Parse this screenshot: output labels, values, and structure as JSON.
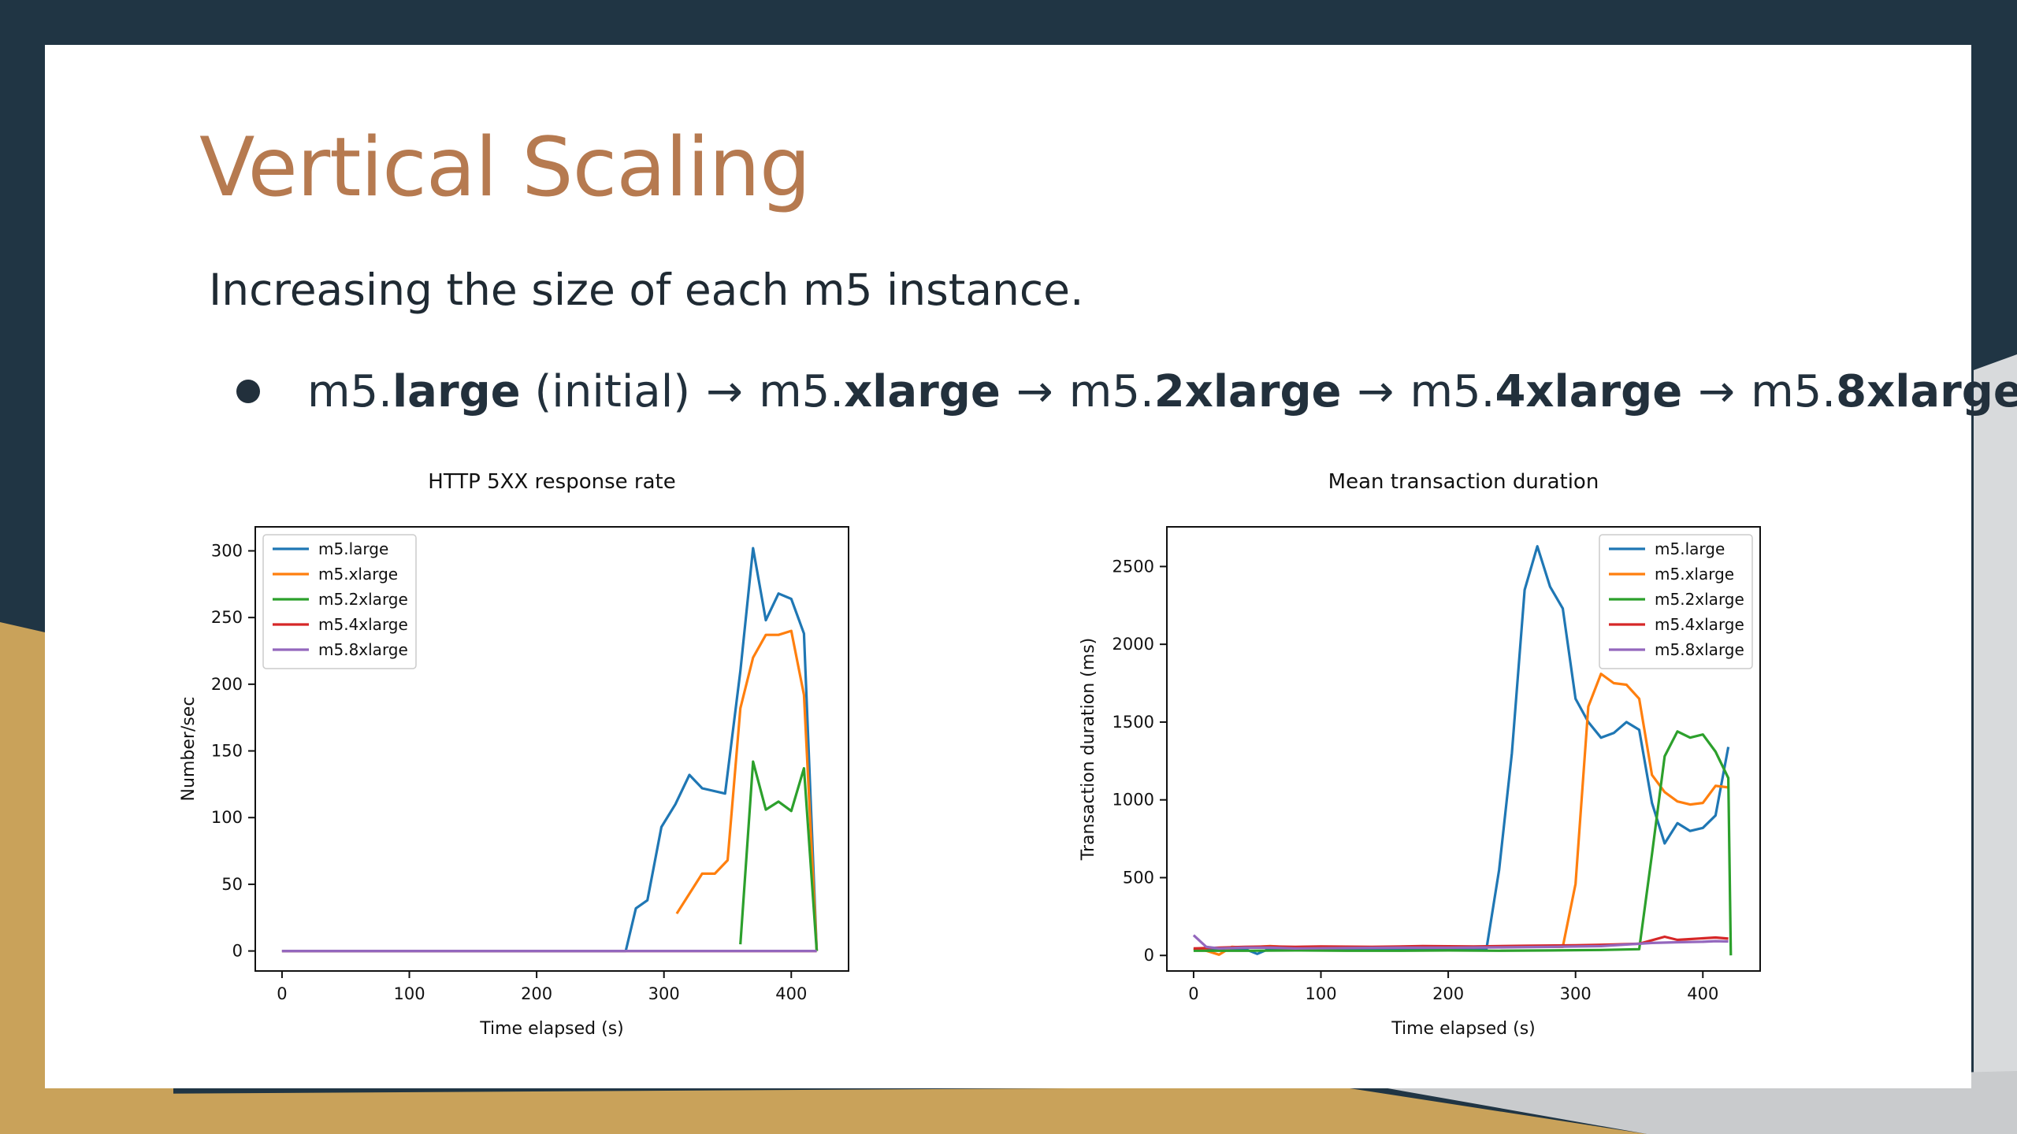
{
  "slide": {
    "title": "Vertical Scaling",
    "subtitle": "Increasing the size of each m5 instance.",
    "bullet": {
      "segments": [
        {
          "prefix": "m5.",
          "bold": "large",
          "suffix": " (initial)"
        },
        {
          "prefix": "m5.",
          "bold": "xlarge",
          "suffix": ""
        },
        {
          "prefix": "m5.",
          "bold": "2xlarge",
          "suffix": ""
        },
        {
          "prefix": "m5.",
          "bold": "4xlarge",
          "suffix": ""
        },
        {
          "prefix": "m5.",
          "bold": "8xlarge",
          "suffix": ""
        }
      ],
      "arrow": "→"
    }
  },
  "colors": {
    "background": "#203544",
    "accent_gold": "#c9a25a",
    "title": "#b67a50",
    "m5.large": "#1f77b4",
    "m5.xlarge": "#ff7f0e",
    "m5.2xlarge": "#2ca02c",
    "m5.4xlarge": "#d62728",
    "m5.8xlarge": "#9467bd"
  },
  "chart_data": [
    {
      "type": "line",
      "title": "HTTP 5XX response rate",
      "xlabel": "Time elapsed (s)",
      "ylabel": "Number/sec",
      "xlim": [
        -21,
        445
      ],
      "ylim": [
        -15,
        318
      ],
      "xticks": [
        0,
        100,
        200,
        300,
        400
      ],
      "yticks": [
        0,
        50,
        100,
        150,
        200,
        250,
        300
      ],
      "grid": false,
      "legend": "top-left",
      "series": [
        {
          "name": "m5.large",
          "color": "#1f77b4",
          "x": [
            0,
            270,
            278,
            287,
            298,
            309,
            320,
            330,
            348,
            360,
            370,
            380,
            390,
            400,
            410,
            420
          ],
          "y": [
            0,
            0,
            32,
            38,
            93,
            110,
            132,
            122,
            118,
            210,
            302,
            248,
            268,
            264,
            238,
            0
          ]
        },
        {
          "name": "m5.xlarge",
          "color": "#ff7f0e",
          "x": [
            310,
            330,
            340,
            350,
            360,
            370,
            380,
            390,
            400,
            410,
            420
          ],
          "y": [
            28,
            58,
            58,
            68,
            182,
            220,
            237,
            237,
            240,
            192,
            0
          ]
        },
        {
          "name": "m5.2xlarge",
          "color": "#2ca02c",
          "x": [
            360,
            370,
            380,
            390,
            400,
            410,
            420
          ],
          "y": [
            5,
            142,
            106,
            112,
            105,
            137,
            0
          ]
        },
        {
          "name": "m5.4xlarge",
          "color": "#d62728",
          "x": [
            0,
            420
          ],
          "y": [
            0,
            0
          ]
        },
        {
          "name": "m5.8xlarge",
          "color": "#9467bd",
          "x": [
            0,
            420
          ],
          "y": [
            0,
            0
          ]
        }
      ]
    },
    {
      "type": "line",
      "title": "Mean transaction duration",
      "xlabel": "Time elapsed (s)",
      "ylabel": "Transaction duration (ms)",
      "xlim": [
        -21,
        445
      ],
      "ylim": [
        -100,
        2755
      ],
      "xticks": [
        0,
        100,
        200,
        300,
        400
      ],
      "yticks": [
        0,
        500,
        1000,
        1500,
        2000,
        2500
      ],
      "grid": false,
      "legend": "top-right",
      "series": [
        {
          "name": "m5.large",
          "color": "#1f77b4",
          "x": [
            0,
            10,
            20,
            30,
            40,
            50,
            60,
            80,
            100,
            120,
            140,
            160,
            180,
            200,
            220,
            230,
            240,
            250,
            260,
            270,
            280,
            290,
            300,
            310,
            320,
            330,
            340,
            350,
            360,
            370,
            380,
            390,
            400,
            410,
            420
          ],
          "y": [
            40,
            38,
            35,
            40,
            42,
            10,
            45,
            40,
            38,
            40,
            42,
            38,
            40,
            42,
            40,
            40,
            550,
            1300,
            2350,
            2630,
            2370,
            2230,
            1650,
            1500,
            1400,
            1430,
            1500,
            1450,
            980,
            720,
            850,
            800,
            820,
            900,
            1340
          ]
        },
        {
          "name": "m5.xlarge",
          "color": "#ff7f0e",
          "x": [
            0,
            10,
            20,
            30,
            40,
            50,
            60,
            80,
            100,
            120,
            140,
            160,
            180,
            200,
            220,
            240,
            260,
            280,
            290,
            300,
            310,
            320,
            330,
            340,
            350,
            360,
            370,
            380,
            390,
            400,
            410,
            420
          ],
          "y": [
            45,
            30,
            5,
            55,
            50,
            55,
            60,
            50,
            55,
            50,
            52,
            55,
            50,
            55,
            52,
            55,
            55,
            55,
            55,
            460,
            1600,
            1810,
            1750,
            1740,
            1650,
            1160,
            1050,
            990,
            970,
            980,
            1090,
            1080
          ]
        },
        {
          "name": "m5.2xlarge",
          "color": "#2ca02c",
          "x": [
            0,
            40,
            80,
            120,
            160,
            200,
            240,
            280,
            320,
            350,
            360,
            370,
            380,
            390,
            400,
            410,
            420,
            422
          ],
          "y": [
            30,
            30,
            32,
            30,
            30,
            32,
            30,
            32,
            35,
            40,
            650,
            1280,
            1440,
            1400,
            1420,
            1310,
            1140,
            0
          ]
        },
        {
          "name": "m5.4xlarge",
          "color": "#d62728",
          "x": [
            0,
            20,
            40,
            60,
            80,
            100,
            140,
            180,
            220,
            260,
            300,
            330,
            350,
            370,
            380,
            390,
            400,
            410,
            420
          ],
          "y": [
            45,
            50,
            55,
            58,
            55,
            58,
            55,
            60,
            58,
            62,
            65,
            70,
            75,
            120,
            100,
            105,
            110,
            115,
            108
          ]
        },
        {
          "name": "m5.8xlarge",
          "color": "#9467bd",
          "x": [
            0,
            10,
            20,
            40,
            60,
            80,
            120,
            160,
            200,
            240,
            280,
            320,
            360,
            380,
            400,
            410,
            420
          ],
          "y": [
            130,
            55,
            45,
            50,
            50,
            45,
            48,
            50,
            50,
            52,
            55,
            60,
            80,
            85,
            88,
            92,
            90
          ]
        }
      ]
    }
  ]
}
